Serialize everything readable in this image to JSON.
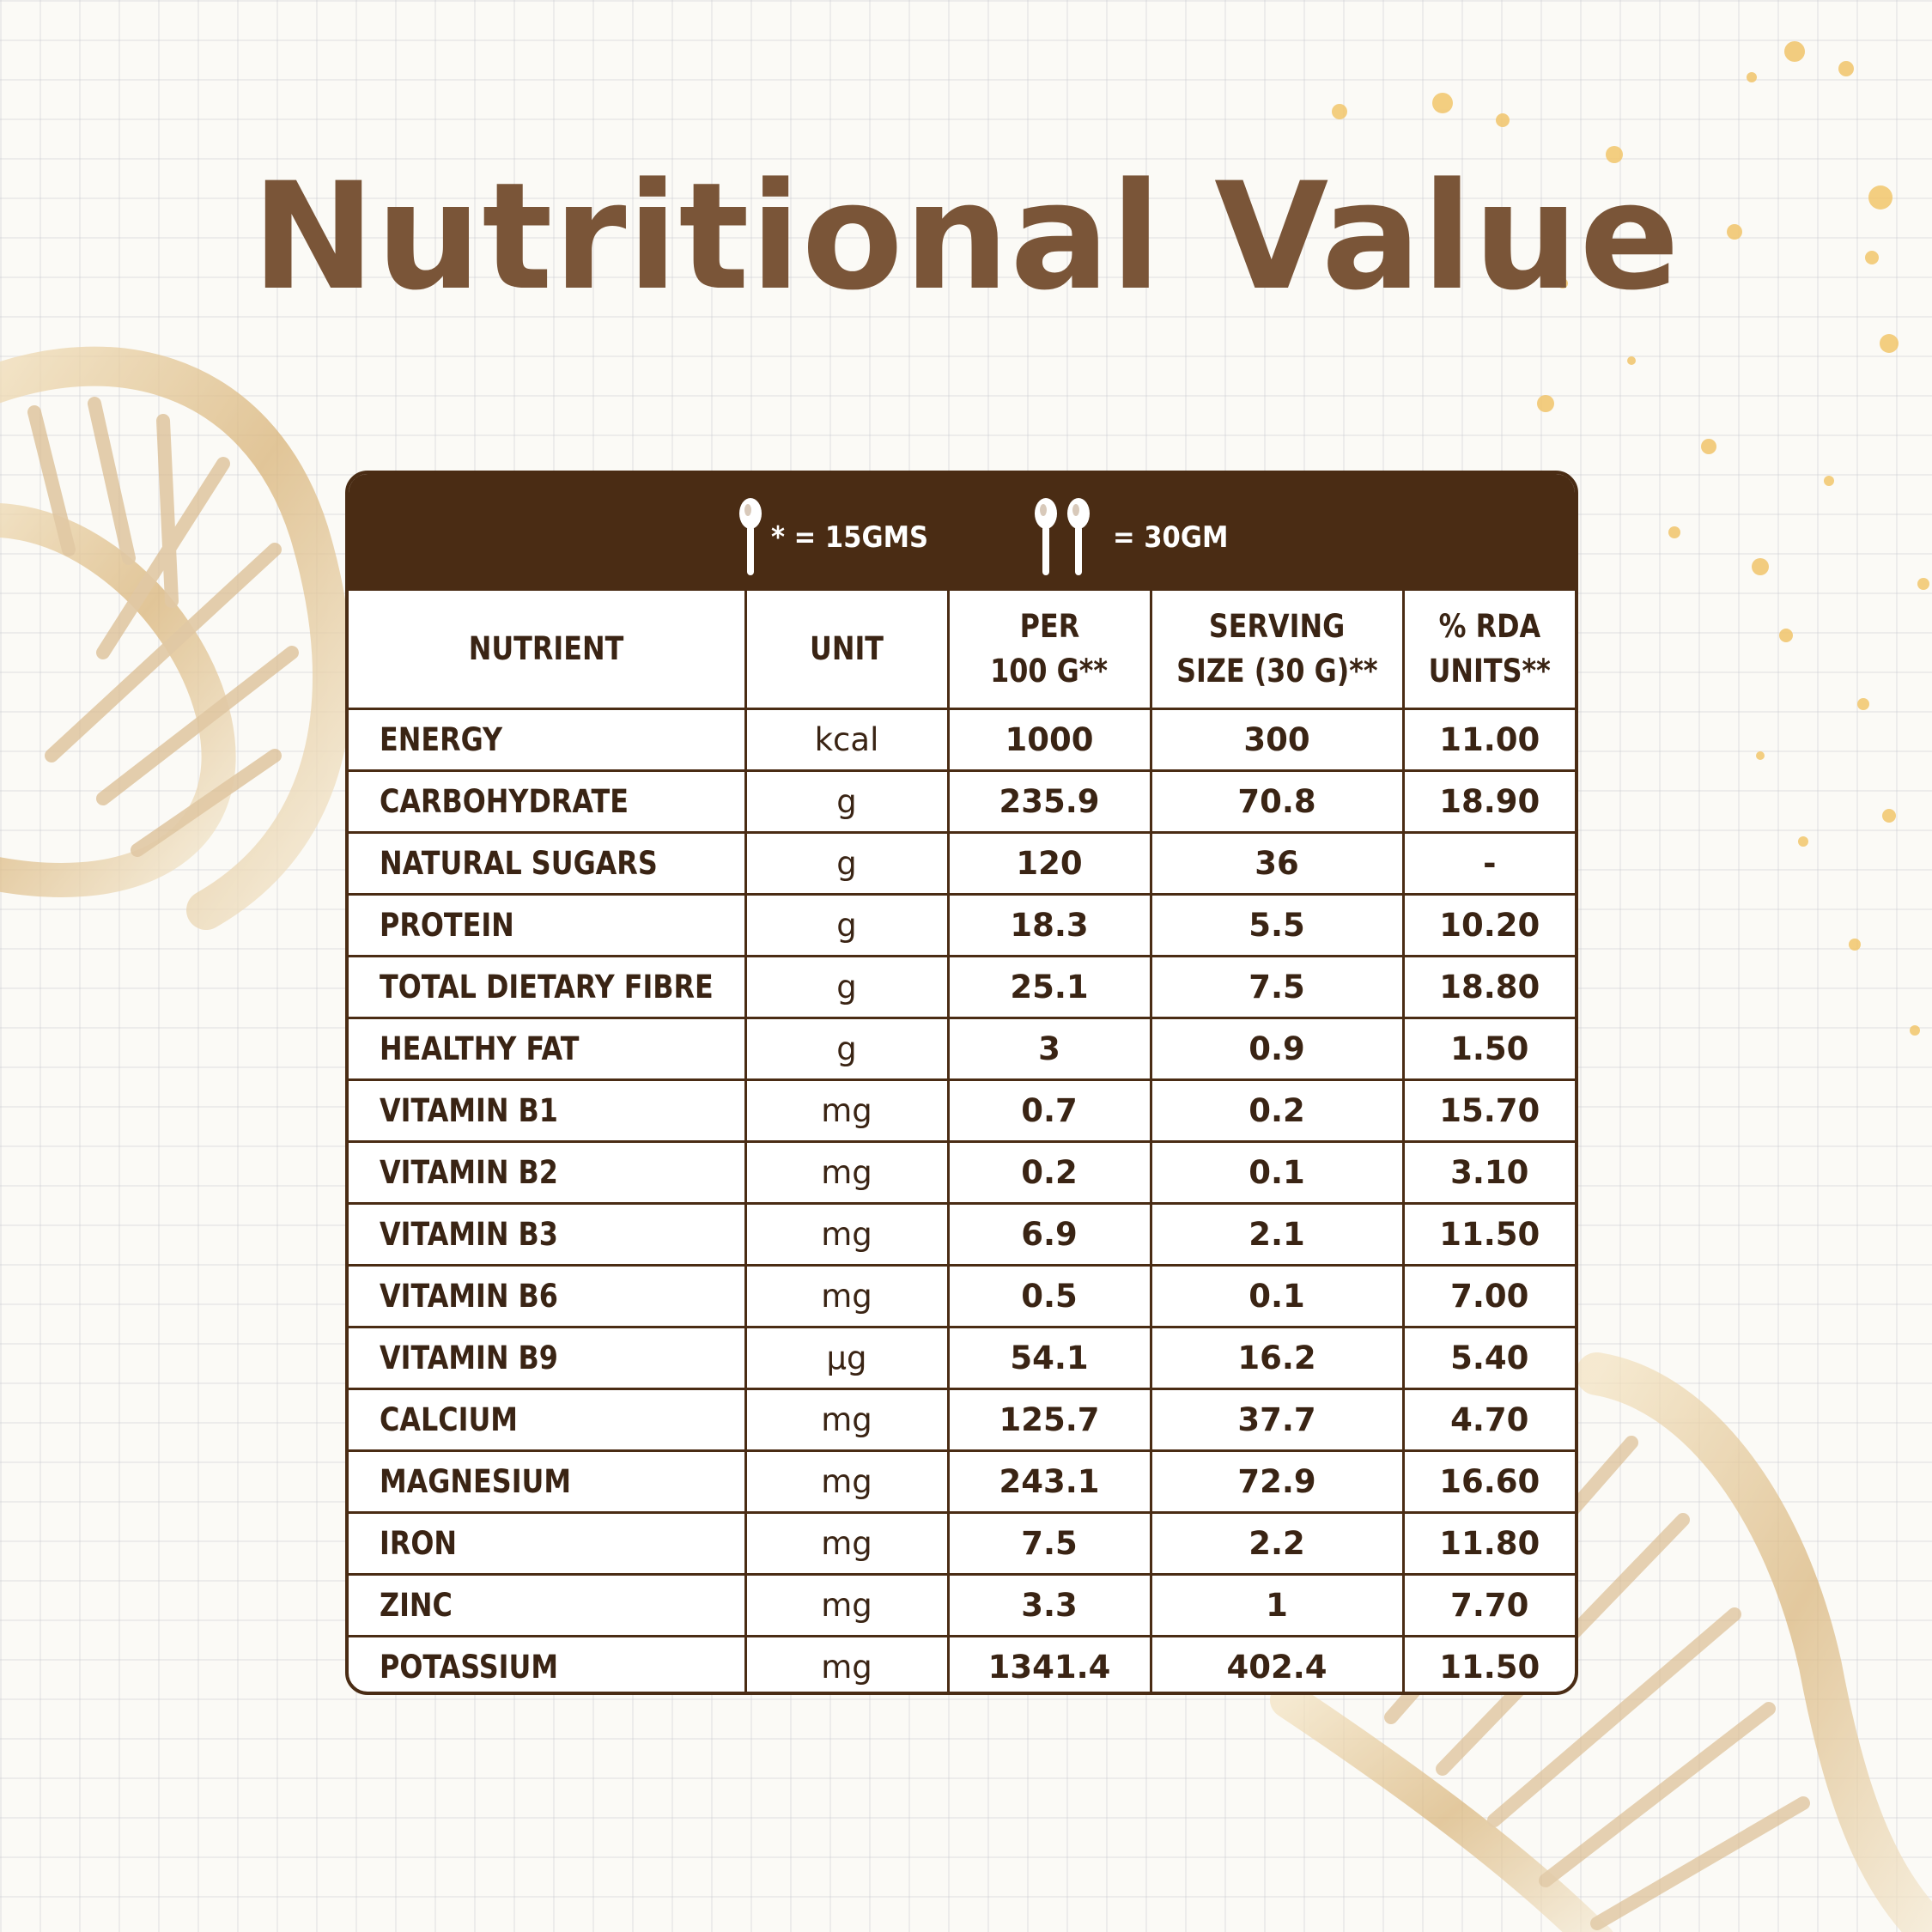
{
  "title": "Nutritional Value",
  "legend": [
    {
      "icon": "spoon-icon",
      "text": "* = 15GMS"
    },
    {
      "icon": "two-spoons-icon",
      "text": "= 30GM"
    }
  ],
  "table": {
    "headers": {
      "nutrient": "NUTRIENT",
      "unit": "UNIT",
      "per100_line1": "PER",
      "per100_line2": "100 G**",
      "serving_line1": "SERVING",
      "serving_line2": "SIZE (30 G)**",
      "rda_line1": "% RDA",
      "rda_line2": "UNITS**"
    },
    "rows": [
      {
        "nutrient": "ENERGY",
        "unit": "kcal",
        "per100": "1000",
        "serving": "300",
        "rda": "11.00"
      },
      {
        "nutrient": "CARBOHYDRATE",
        "unit": "g",
        "per100": "235.9",
        "serving": "70.8",
        "rda": "18.90"
      },
      {
        "nutrient": "NATURAL SUGARS",
        "unit": "g",
        "per100": "120",
        "serving": "36",
        "rda": "-"
      },
      {
        "nutrient": "PROTEIN",
        "unit": "g",
        "per100": "18.3",
        "serving": "5.5",
        "rda": "10.20"
      },
      {
        "nutrient": "TOTAL DIETARY FIBRE",
        "unit": "g",
        "per100": "25.1",
        "serving": "7.5",
        "rda": "18.80"
      },
      {
        "nutrient": "HEALTHY FAT",
        "unit": "g",
        "per100": "3",
        "serving": "0.9",
        "rda": "1.50"
      },
      {
        "nutrient": "VITAMIN B1",
        "unit": "mg",
        "per100": "0.7",
        "serving": "0.2",
        "rda": "15.70"
      },
      {
        "nutrient": "VITAMIN B2",
        "unit": "mg",
        "per100": "0.2",
        "serving": "0.1",
        "rda": "3.10"
      },
      {
        "nutrient": "VITAMIN B3",
        "unit": "mg",
        "per100": "6.9",
        "serving": "2.1",
        "rda": "11.50"
      },
      {
        "nutrient": "VITAMIN B6",
        "unit": "mg",
        "per100": "0.5",
        "serving": "0.1",
        "rda": "7.00"
      },
      {
        "nutrient": "VITAMIN B9",
        "unit": "µg",
        "per100": "54.1",
        "serving": "16.2",
        "rda": "5.40"
      },
      {
        "nutrient": "CALCIUM",
        "unit": "mg",
        "per100": "125.7",
        "serving": "37.7",
        "rda": "4.70"
      },
      {
        "nutrient": "MAGNESIUM",
        "unit": "mg",
        "per100": "243.1",
        "serving": "72.9",
        "rda": "16.60"
      },
      {
        "nutrient": "IRON",
        "unit": "mg",
        "per100": "7.5",
        "serving": "2.2",
        "rda": "11.80"
      },
      {
        "nutrient": "ZINC",
        "unit": "mg",
        "per100": "3.3",
        "serving": "1",
        "rda": "7.70"
      },
      {
        "nutrient": "POTASSIUM",
        "unit": "mg",
        "per100": "1341.4",
        "serving": "402.4",
        "rda": "11.50"
      }
    ]
  },
  "colors": {
    "brand_brown": "#4a2c14",
    "title_brown": "#7a5538",
    "gold": "#d8b26a"
  }
}
